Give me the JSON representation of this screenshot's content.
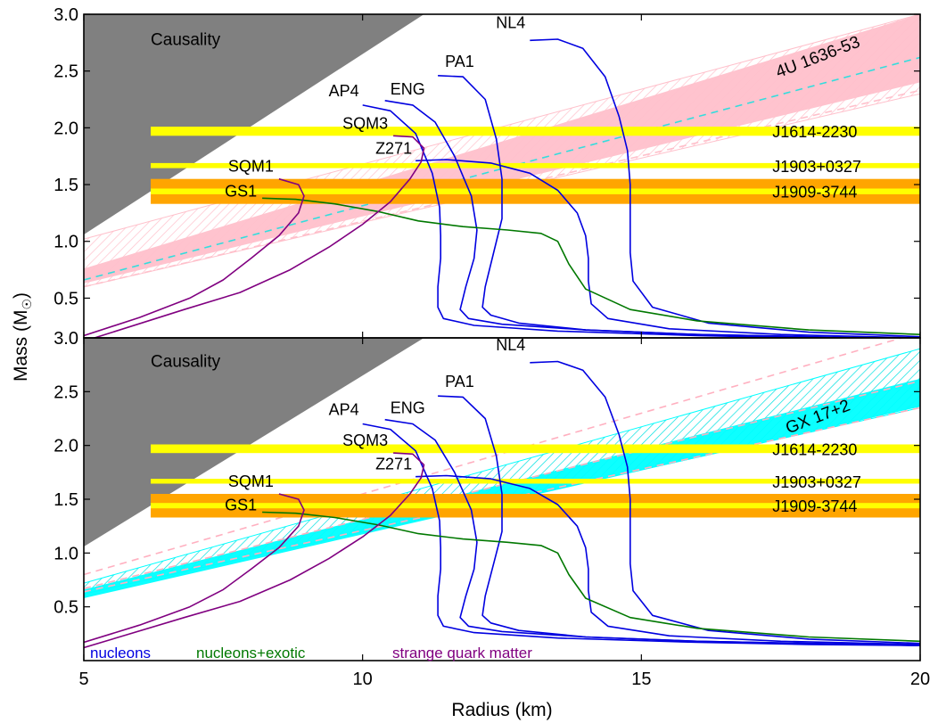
{
  "chart_data": {
    "type": "line",
    "xlabel": "Radius (km)",
    "ylabel": "Mass (M",
    "ylabel_sub": "☉",
    "ylabel_close": ")",
    "xlim": [
      5,
      20
    ],
    "xticks": [
      5,
      10,
      15,
      20
    ],
    "y_ticks": [
      0.5,
      1.0,
      1.5,
      2.0,
      2.5,
      3.0
    ],
    "y_tick_labels": [
      "0.5",
      "1.0",
      "1.5",
      "2.0",
      "2.5",
      "3.0"
    ],
    "colors": {
      "nucleons": "#0000e0",
      "exotic": "#007800",
      "strange": "#800080",
      "causality": "#808080",
      "yellow": "#ffff00",
      "orange": "#ffa500",
      "pink": "#ffc0cb",
      "cyan": "#00ffff",
      "cyan_line": "#33dddd"
    },
    "footer_legend": [
      {
        "label": "nucleons",
        "color": "#0000e0"
      },
      {
        "label": "nucleons+exotic",
        "color": "#007800"
      },
      {
        "label": "strange quark matter",
        "color": "#800080"
      }
    ],
    "causality_label": "Causality",
    "pulsars": [
      {
        "name": "J1614-2230",
        "mass": 1.97,
        "band": [
          1.93,
          2.01
        ],
        "color": "#ffff00"
      },
      {
        "name": "J1903+0327",
        "mass": 1.667,
        "band": [
          1.645,
          1.69
        ],
        "color": "#ffff00"
      },
      {
        "name": "J1909-3744",
        "mass": 1.44,
        "band": [
          1.33,
          1.55
        ],
        "color": "#ffa500",
        "inner": [
          1.415,
          1.465
        ]
      }
    ],
    "series": [
      {
        "name": "NL4",
        "group": "nucleons",
        "x": [
          13.0,
          13.5,
          13.95,
          14.35,
          14.6,
          14.75,
          14.8,
          14.8,
          14.8,
          14.85,
          15.2,
          16.2,
          18.0,
          20.0
        ],
        "y": [
          2.77,
          2.78,
          2.7,
          2.45,
          2.1,
          1.8,
          1.5,
          1.2,
          0.9,
          0.65,
          0.42,
          0.28,
          0.2,
          0.16
        ]
      },
      {
        "name": "PA1",
        "group": "nucleons",
        "x": [
          11.35,
          11.8,
          12.2,
          12.4,
          12.5,
          12.5,
          12.35,
          12.2,
          12.15,
          12.3,
          12.8,
          14.0,
          16.0,
          18.0,
          20.0
        ],
        "y": [
          2.46,
          2.45,
          2.25,
          1.9,
          1.55,
          1.2,
          0.9,
          0.6,
          0.42,
          0.35,
          0.28,
          0.22,
          0.18,
          0.16,
          0.14
        ]
      },
      {
        "name": "ENG",
        "group": "nucleons",
        "x": [
          10.4,
          10.9,
          11.3,
          11.65,
          11.95,
          12.05,
          12.0,
          11.85,
          11.75,
          11.9,
          12.5,
          14.0,
          16.0,
          18.0,
          20.0
        ],
        "y": [
          2.24,
          2.2,
          2.05,
          1.75,
          1.4,
          1.1,
          0.85,
          0.6,
          0.4,
          0.32,
          0.27,
          0.22,
          0.18,
          0.16,
          0.14
        ]
      },
      {
        "name": "AP4",
        "group": "nucleons",
        "x": [
          10.0,
          10.5,
          10.95,
          11.25,
          11.38,
          11.4,
          11.4,
          11.35,
          11.35,
          11.45,
          12.0,
          13.5,
          16.0,
          18.0,
          20.0
        ],
        "y": [
          2.2,
          2.15,
          1.95,
          1.6,
          1.3,
          1.05,
          0.85,
          0.6,
          0.42,
          0.32,
          0.26,
          0.21,
          0.17,
          0.15,
          0.14
        ]
      },
      {
        "name": "Z271",
        "group": "nucleons",
        "x": [
          10.95,
          11.5,
          12.3,
          13.0,
          13.5,
          13.85,
          14.0,
          14.05,
          14.05,
          14.1,
          14.4,
          15.5,
          17.5,
          20.0
        ],
        "y": [
          1.71,
          1.72,
          1.69,
          1.6,
          1.45,
          1.25,
          1.05,
          0.85,
          0.65,
          0.45,
          0.32,
          0.23,
          0.18,
          0.15
        ]
      },
      {
        "name": "GS1",
        "group": "exotic",
        "x": [
          8.2,
          8.8,
          9.5,
          10.3,
          11.0,
          11.8,
          12.6,
          13.2,
          13.5,
          13.7,
          14.0,
          14.8,
          16.0,
          18.0,
          20.0
        ],
        "y": [
          1.38,
          1.37,
          1.33,
          1.26,
          1.18,
          1.13,
          1.1,
          1.07,
          1.0,
          0.8,
          0.58,
          0.4,
          0.3,
          0.22,
          0.18
        ]
      },
      {
        "name": "SQM1",
        "group": "strange",
        "x": [
          8.5,
          8.85,
          8.95,
          8.85,
          8.5,
          8.0,
          7.5,
          6.9,
          6.0,
          5.0
        ],
        "y": [
          1.55,
          1.5,
          1.4,
          1.25,
          1.05,
          0.85,
          0.66,
          0.5,
          0.33,
          0.17
        ]
      },
      {
        "name": "SQM3",
        "group": "strange",
        "x": [
          10.55,
          10.9,
          11.1,
          11.05,
          10.85,
          10.5,
          10.0,
          9.4,
          8.7,
          7.8,
          6.8,
          5.0
        ],
        "y": [
          1.93,
          1.92,
          1.82,
          1.7,
          1.55,
          1.35,
          1.15,
          0.95,
          0.75,
          0.55,
          0.4,
          0.12
        ]
      }
    ],
    "panels": [
      {
        "id": "top",
        "ylim": [
          0.15,
          3.0
        ],
        "band_label": "4U 1636-53",
        "band_color": "#ffc0cb",
        "band_rot": -21
      },
      {
        "id": "bottom",
        "ylim": [
          0.0,
          3.0
        ],
        "band_label": "GX 17+2",
        "band_color": "#00ffff",
        "band_rot": -21
      }
    ]
  }
}
